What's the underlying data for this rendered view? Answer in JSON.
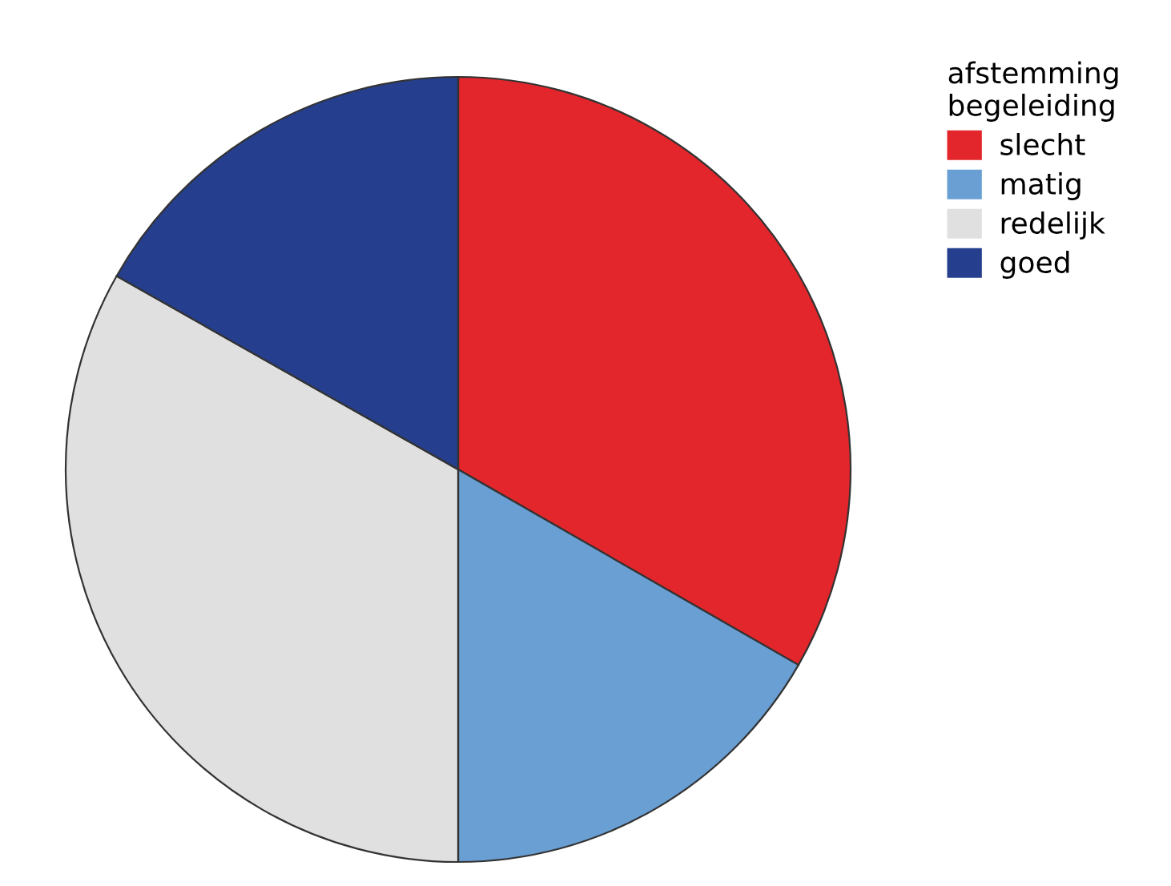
{
  "chart_data": {
    "type": "pie",
    "legend_title": "afstemming\nbegeleiding",
    "categories": [
      "slecht",
      "matig",
      "redelijk",
      "goed"
    ],
    "values": [
      33.3,
      16.7,
      33.2,
      16.8
    ],
    "colors": [
      "#e3262b",
      "#6a9fd4",
      "#e0e0e0",
      "#253f8e"
    ],
    "legend": "top right"
  }
}
